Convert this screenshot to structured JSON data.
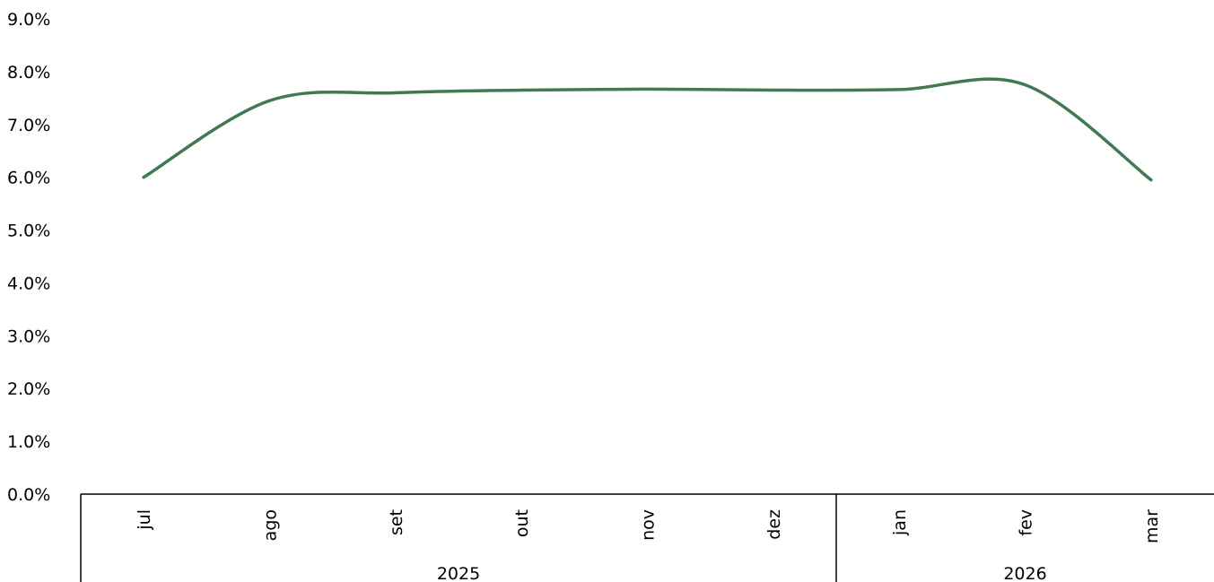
{
  "chart_data": {
    "type": "line",
    "title": "",
    "xlabel": "",
    "ylabel": "",
    "x": [
      "jul",
      "ago",
      "set",
      "out",
      "nov",
      "dez",
      "jan",
      "fev",
      "mar"
    ],
    "groups": [
      {
        "label": "2025",
        "categories": [
          "jul",
          "ago",
          "set",
          "out",
          "nov",
          "dez"
        ]
      },
      {
        "label": "2026",
        "categories": [
          "jan",
          "fev",
          "mar"
        ]
      }
    ],
    "series": [
      {
        "values": [
          6.0,
          7.45,
          7.6,
          7.65,
          7.67,
          7.65,
          7.66,
          7.75,
          5.95
        ],
        "color": "#3f7a52"
      }
    ],
    "ylim": [
      0,
      9
    ],
    "yticks": [
      "0.0%",
      "1.0%",
      "2.0%",
      "3.0%",
      "4.0%",
      "5.0%",
      "6.0%",
      "7.0%",
      "8.0%",
      "9.0%"
    ],
    "grid": false,
    "legend": "none",
    "smooth": true
  }
}
